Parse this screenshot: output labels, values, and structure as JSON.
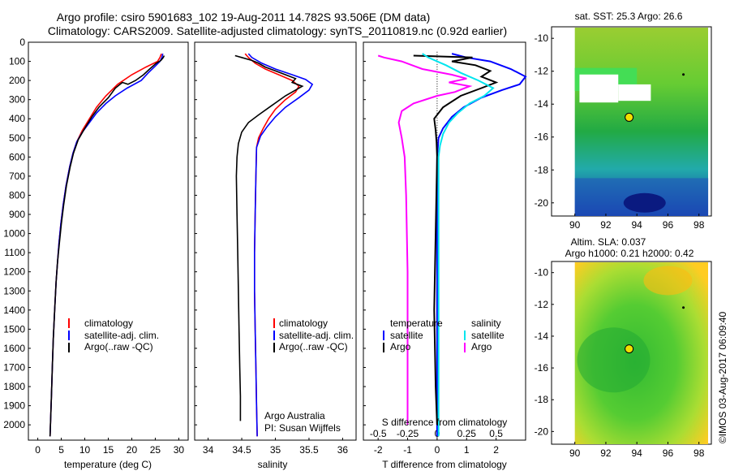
{
  "header": {
    "line1": "Argo profile: csiro 5901683_102 19-Aug-2011 14.782S 93.506E (DM data)",
    "line2": "Climatology: CARS2009. Satellite-adjusted climatology: synTS_20110819.nc (0.92d earlier)"
  },
  "colors": {
    "climatology": "#ff0000",
    "satellite": "#0000ff",
    "argo": "#000000",
    "salinity_satellite": "#00e5ee",
    "salinity_argo": "#ff00ff"
  },
  "chart_data": [
    {
      "id": "temperature",
      "type": "line",
      "xlabel": "temperature (deg C)",
      "xlim": [
        -2,
        32
      ],
      "xticks": [
        0,
        5,
        10,
        15,
        20,
        25,
        30
      ],
      "ylim": [
        0,
        2080
      ],
      "yticks": [
        0,
        100,
        200,
        300,
        400,
        500,
        600,
        700,
        800,
        900,
        1000,
        1100,
        1200,
        1300,
        1400,
        1500,
        1600,
        1700,
        1800,
        1900,
        2000
      ],
      "y_inverted": true,
      "legend": [
        "climatology",
        "satellite-adj. clim.",
        "Argo(..raw -QC)"
      ],
      "series": [
        {
          "name": "climatology",
          "points": [
            [
              26.3,
              60
            ],
            [
              26.0,
              80
            ],
            [
              25.5,
              100
            ],
            [
              23.0,
              130
            ],
            [
              20.0,
              170
            ],
            [
              17.0,
              220
            ],
            [
              14.5,
              280
            ],
            [
              12.5,
              340
            ],
            [
              11.0,
              400
            ],
            [
              9.5,
              460
            ],
            [
              8.3,
              520
            ],
            [
              7.5,
              580
            ],
            [
              6.8,
              650
            ],
            [
              6.0,
              750
            ],
            [
              5.4,
              850
            ],
            [
              4.9,
              950
            ],
            [
              4.5,
              1050
            ],
            [
              4.2,
              1150
            ],
            [
              3.9,
              1250
            ],
            [
              3.6,
              1400
            ],
            [
              3.3,
              1550
            ],
            [
              3.1,
              1700
            ],
            [
              2.9,
              1850
            ],
            [
              2.7,
              2000
            ],
            [
              2.6,
              2060
            ]
          ]
        },
        {
          "name": "satellite-adj. clim.",
          "points": [
            [
              26.6,
              60
            ],
            [
              26.4,
              80
            ],
            [
              26.0,
              100
            ],
            [
              25.0,
              125
            ],
            [
              23.5,
              160
            ],
            [
              22.0,
              200
            ],
            [
              19.0,
              240
            ],
            [
              16.5,
              280
            ],
            [
              14.5,
              320
            ],
            [
              12.5,
              370
            ],
            [
              11.0,
              420
            ],
            [
              9.5,
              470
            ],
            [
              8.3,
              520
            ],
            [
              7.5,
              580
            ],
            [
              6.8,
              650
            ],
            [
              6.0,
              750
            ],
            [
              5.4,
              850
            ],
            [
              4.9,
              950
            ],
            [
              4.5,
              1050
            ],
            [
              4.2,
              1150
            ],
            [
              3.9,
              1250
            ],
            [
              3.6,
              1400
            ],
            [
              3.3,
              1550
            ],
            [
              3.1,
              1700
            ],
            [
              2.9,
              1850
            ],
            [
              2.7,
              2000
            ],
            [
              2.6,
              2060
            ]
          ]
        },
        {
          "name": "Argo(..raw -QC)",
          "points": [
            [
              26.9,
              70
            ],
            [
              26.7,
              80
            ],
            [
              26.2,
              95
            ],
            [
              25.2,
              110
            ],
            [
              23.8,
              140
            ],
            [
              22.5,
              170
            ],
            [
              20.8,
              200
            ],
            [
              19.2,
              220
            ],
            [
              18.0,
              210
            ],
            [
              16.5,
              240
            ],
            [
              15.0,
              290
            ],
            [
              13.0,
              340
            ],
            [
              11.5,
              390
            ],
            [
              10.0,
              450
            ],
            [
              8.6,
              510
            ],
            [
              7.6,
              580
            ],
            [
              6.9,
              650
            ],
            [
              6.1,
              750
            ],
            [
              5.5,
              850
            ],
            [
              5.0,
              950
            ],
            [
              4.6,
              1050
            ],
            [
              4.2,
              1150
            ],
            [
              3.9,
              1250
            ],
            [
              3.6,
              1400
            ],
            [
              3.3,
              1550
            ],
            [
              3.1,
              1700
            ],
            [
              2.9,
              1850
            ],
            [
              2.7,
              2000
            ],
            [
              2.6,
              2060
            ]
          ]
        }
      ]
    },
    {
      "id": "salinity",
      "type": "line",
      "xlabel": "salinity",
      "xlim": [
        33.8,
        36.2
      ],
      "xticks": [
        34,
        34.5,
        35,
        35.5,
        36
      ],
      "ylim": [
        0,
        2080
      ],
      "y_inverted": true,
      "legend": [
        "climatology",
        "satellite-adj. clim.",
        "Argo(..raw -QC)"
      ],
      "annotation": [
        "Argo Australia",
        "PI: Susan Wijffels"
      ],
      "series": [
        {
          "name": "climatology",
          "points": [
            [
              34.55,
              60
            ],
            [
              34.6,
              80
            ],
            [
              34.7,
              110
            ],
            [
              34.85,
              140
            ],
            [
              35.05,
              170
            ],
            [
              35.25,
              200
            ],
            [
              35.35,
              230
            ],
            [
              35.3,
              260
            ],
            [
              35.15,
              300
            ],
            [
              35.0,
              350
            ],
            [
              34.9,
              400
            ],
            [
              34.82,
              450
            ],
            [
              34.75,
              500
            ],
            [
              34.72,
              550
            ],
            [
              34.71,
              700
            ],
            [
              34.7,
              900
            ],
            [
              34.69,
              1100
            ],
            [
              34.69,
              1300
            ],
            [
              34.7,
              1500
            ],
            [
              34.71,
              1700
            ],
            [
              34.72,
              1900
            ],
            [
              34.73,
              2060
            ]
          ]
        },
        {
          "name": "satellite-adj. clim.",
          "points": [
            [
              34.6,
              60
            ],
            [
              34.65,
              80
            ],
            [
              34.8,
              110
            ],
            [
              35.0,
              140
            ],
            [
              35.25,
              170
            ],
            [
              35.45,
              195
            ],
            [
              35.55,
              220
            ],
            [
              35.5,
              250
            ],
            [
              35.35,
              290
            ],
            [
              35.15,
              340
            ],
            [
              35.0,
              390
            ],
            [
              34.88,
              440
            ],
            [
              34.78,
              490
            ],
            [
              34.72,
              550
            ],
            [
              34.71,
              700
            ],
            [
              34.7,
              900
            ],
            [
              34.69,
              1100
            ],
            [
              34.69,
              1300
            ],
            [
              34.7,
              1500
            ],
            [
              34.71,
              1700
            ],
            [
              34.72,
              1900
            ],
            [
              34.73,
              2060
            ]
          ]
        },
        {
          "name": "Argo(..raw -QC)",
          "points": [
            [
              34.4,
              70
            ],
            [
              34.5,
              80
            ],
            [
              34.65,
              95
            ],
            [
              34.75,
              110
            ],
            [
              34.85,
              130
            ],
            [
              35.0,
              150
            ],
            [
              35.15,
              170
            ],
            [
              35.3,
              190
            ],
            [
              35.25,
              210
            ],
            [
              35.4,
              230
            ],
            [
              35.3,
              250
            ],
            [
              35.15,
              280
            ],
            [
              34.95,
              330
            ],
            [
              34.75,
              380
            ],
            [
              34.6,
              420
            ],
            [
              34.5,
              470
            ],
            [
              34.45,
              530
            ],
            [
              34.43,
              600
            ],
            [
              34.42,
              700
            ],
            [
              34.43,
              900
            ],
            [
              34.44,
              1100
            ],
            [
              34.45,
              1300
            ],
            [
              34.46,
              1500
            ],
            [
              34.47,
              1700
            ],
            [
              34.48,
              1850
            ],
            [
              34.48,
              1980
            ]
          ]
        }
      ]
    },
    {
      "id": "difference",
      "type": "line",
      "xlabel": "T difference from climatology",
      "xlabel_top": "S difference from climatology",
      "xlim": [
        -2.5,
        3.0
      ],
      "xticks": [
        -2,
        -1,
        0,
        1,
        2
      ],
      "xticks_top_labels": [
        "-0.5",
        "-0.25",
        "0",
        "0.25",
        "0.5"
      ],
      "ylim": [
        0,
        2080
      ],
      "y_inverted": true,
      "legend_left": {
        "title": "temperature",
        "items": [
          "satellite",
          "Argo"
        ]
      },
      "legend_right": {
        "title": "salinity",
        "items": [
          "satellite",
          "Argo"
        ]
      },
      "series": [
        {
          "name": "temperature satellite",
          "points": [
            [
              0.5,
              60
            ],
            [
              1.0,
              80
            ],
            [
              1.8,
              100
            ],
            [
              2.5,
              140
            ],
            [
              3.0,
              180
            ],
            [
              2.8,
              220
            ],
            [
              2.2,
              250
            ],
            [
              1.5,
              290
            ],
            [
              0.9,
              340
            ],
            [
              0.5,
              390
            ],
            [
              0.2,
              450
            ],
            [
              0.05,
              500
            ],
            [
              0.0,
              600
            ],
            [
              0.0,
              2060
            ]
          ]
        },
        {
          "name": "temperature Argo",
          "points": [
            [
              -0.8,
              70
            ],
            [
              1.2,
              80
            ],
            [
              0.5,
              100
            ],
            [
              1.3,
              120
            ],
            [
              1.8,
              150
            ],
            [
              1.5,
              180
            ],
            [
              2.0,
              210
            ],
            [
              1.5,
              240
            ],
            [
              0.8,
              280
            ],
            [
              0.2,
              340
            ],
            [
              -0.1,
              400
            ],
            [
              -0.05,
              460
            ],
            [
              -0.02,
              520
            ],
            [
              0.0,
              600
            ],
            [
              -0.05,
              1000
            ],
            [
              -0.1,
              1400
            ],
            [
              -0.05,
              1800
            ],
            [
              0.0,
              2000
            ]
          ]
        },
        {
          "name": "salinity satellite",
          "points": [
            [
              -0.5,
              60
            ],
            [
              -0.3,
              80
            ],
            [
              0.3,
              120
            ],
            [
              0.8,
              160
            ],
            [
              1.4,
              200
            ],
            [
              1.9,
              240
            ],
            [
              1.6,
              280
            ],
            [
              1.1,
              320
            ],
            [
              0.7,
              370
            ],
            [
              0.4,
              420
            ],
            [
              0.2,
              480
            ],
            [
              0.1,
              540
            ],
            [
              0.05,
              600
            ],
            [
              0.05,
              2060
            ]
          ]
        },
        {
          "name": "salinity Argo",
          "points": [
            [
              -2.0,
              70
            ],
            [
              -1.8,
              80
            ],
            [
              -1.2,
              100
            ],
            [
              -0.5,
              140
            ],
            [
              0.5,
              170
            ],
            [
              1.0,
              190
            ],
            [
              0.4,
              210
            ],
            [
              1.1,
              230
            ],
            [
              0.6,
              260
            ],
            [
              0.0,
              280
            ],
            [
              -0.8,
              320
            ],
            [
              -1.2,
              360
            ],
            [
              -1.3,
              420
            ],
            [
              -1.2,
              500
            ],
            [
              -1.1,
              600
            ],
            [
              -1.05,
              800
            ],
            [
              -1.0,
              1200
            ],
            [
              -1.0,
              1600
            ],
            [
              -1.0,
              2000
            ]
          ]
        }
      ]
    },
    {
      "id": "sst-map",
      "type": "heatmap",
      "title": "sat. SST: 25.3 Argo: 26.6",
      "xlim": [
        88.5,
        98.8
      ],
      "ylim": [
        -20.8,
        -9.3
      ],
      "xticks": [
        90,
        92,
        94,
        96,
        98
      ],
      "yticks": [
        -10,
        -12,
        -14,
        -16,
        -18,
        -20
      ],
      "float_position": [
        93.5,
        -14.8
      ]
    },
    {
      "id": "sla-map",
      "type": "heatmap",
      "title_lines": [
        "Altim. SLA: 0.037",
        "Argo h1000: 0.21 h2000: 0.42"
      ],
      "xlim": [
        88.5,
        98.8
      ],
      "ylim": [
        -20.8,
        -9.3
      ],
      "xticks": [
        90,
        92,
        94,
        96,
        98
      ],
      "yticks": [
        -10,
        -12,
        -14,
        -16,
        -18,
        -20
      ],
      "float_position": [
        93.5,
        -14.8
      ]
    }
  ],
  "side_label": "©IMOS 03-Aug-2017 06:09:40"
}
